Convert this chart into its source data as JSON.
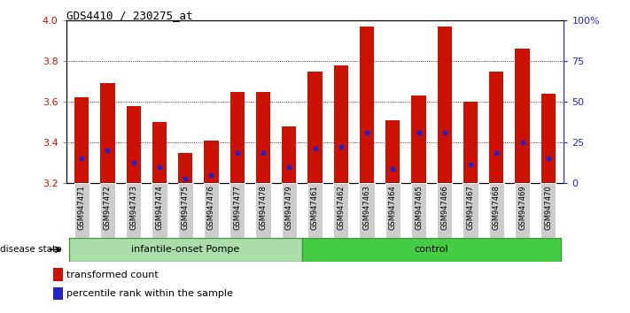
{
  "title": "GDS4410 / 230275_at",
  "samples": [
    "GSM947471",
    "GSM947472",
    "GSM947473",
    "GSM947474",
    "GSM947475",
    "GSM947476",
    "GSM947477",
    "GSM947478",
    "GSM947479",
    "GSM947461",
    "GSM947462",
    "GSM947463",
    "GSM947464",
    "GSM947465",
    "GSM947466",
    "GSM947467",
    "GSM947468",
    "GSM947469",
    "GSM947470"
  ],
  "bar_heights": [
    3.62,
    3.69,
    3.58,
    3.5,
    3.35,
    3.41,
    3.65,
    3.65,
    3.48,
    3.75,
    3.78,
    3.97,
    3.51,
    3.63,
    3.97,
    3.6,
    3.75,
    3.86,
    3.64
  ],
  "blue_positions": [
    3.32,
    3.36,
    3.3,
    3.28,
    3.22,
    3.24,
    3.35,
    3.35,
    3.28,
    3.37,
    3.38,
    3.45,
    3.27,
    3.45,
    3.45,
    3.29,
    3.35,
    3.4,
    3.32
  ],
  "bar_color": "#cc1100",
  "blue_color": "#2222cc",
  "ymin": 3.2,
  "ymax": 4.0,
  "yticks": [
    3.2,
    3.4,
    3.6,
    3.8,
    4.0
  ],
  "right_yticks": [
    0,
    25,
    50,
    75,
    100
  ],
  "right_ytick_labels": [
    "0",
    "25",
    "50",
    "75",
    "100%"
  ],
  "group1_label": "infantile-onset Pompe",
  "group2_label": "control",
  "group1_count": 9,
  "group2_count": 10,
  "disease_state_label": "disease state",
  "legend_bar_label": "transformed count",
  "legend_blue_label": "percentile rank within the sample",
  "bg_color": "#ffffff",
  "tick_label_color": "#cc1100",
  "right_tick_color": "#2222cc",
  "group1_color": "#aaddaa",
  "group2_color": "#44cc44",
  "xtick_bg_color": "#cccccc",
  "bar_width": 0.55
}
